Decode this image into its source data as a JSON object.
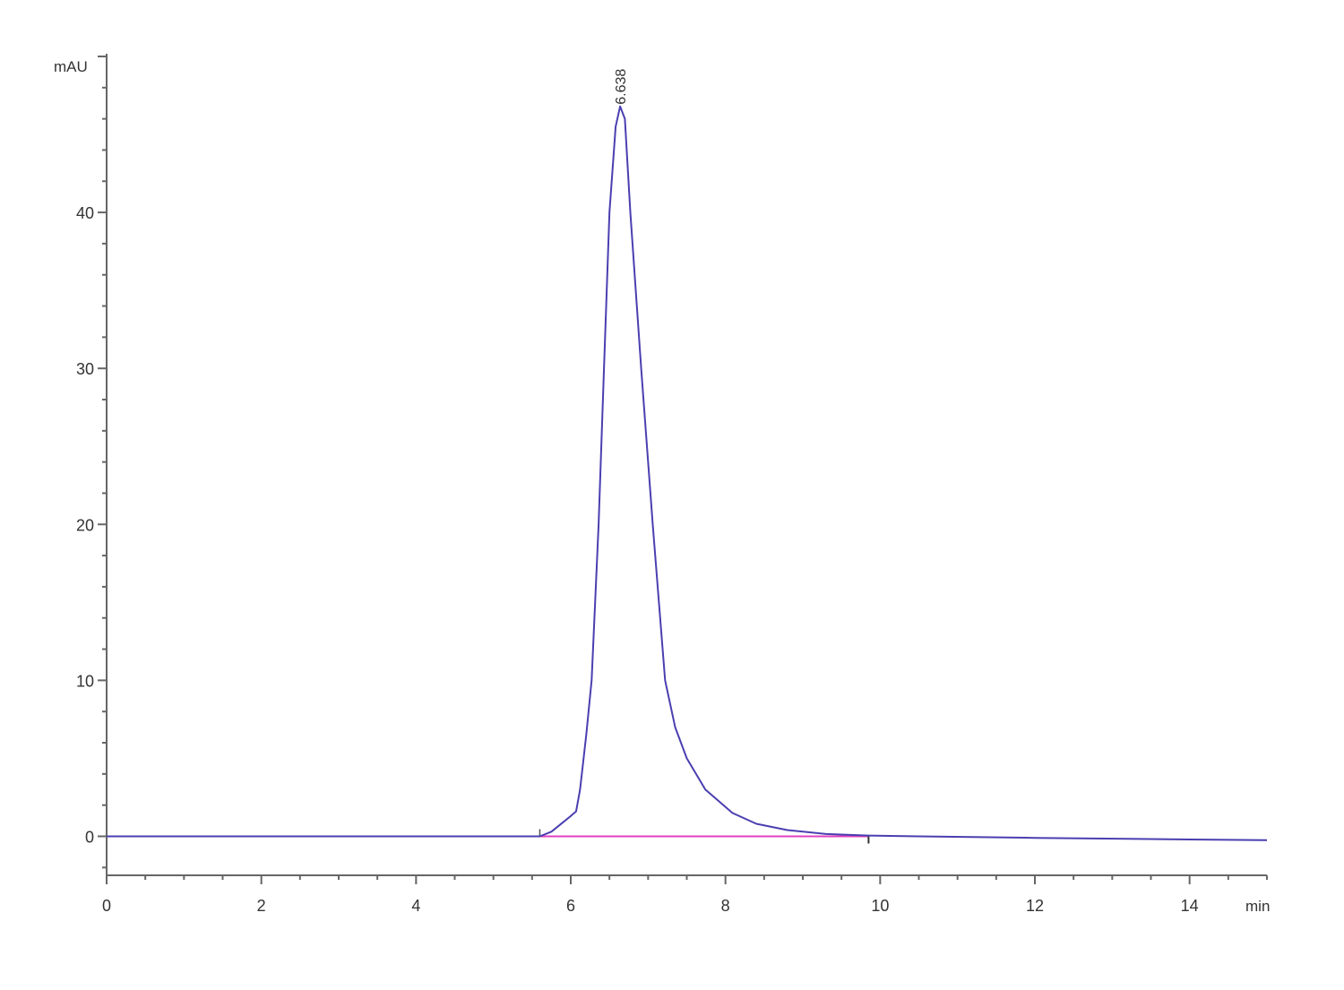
{
  "chart_data": {
    "type": "line",
    "title": "",
    "ylabel": "mAU",
    "xlabel": "min",
    "xlim": [
      0,
      15
    ],
    "ylim": [
      -2.5,
      50
    ],
    "grid": false,
    "x_ticks": [
      0,
      2,
      4,
      6,
      8,
      10,
      12,
      14
    ],
    "y_ticks": [
      0,
      10,
      20,
      30,
      40
    ],
    "colors": {
      "signal": "#4a3fb0",
      "baseline": "#e040c0",
      "axis": "#666666"
    },
    "peak_label": "6.638",
    "peak": {
      "x": 6.638,
      "y": 46.8
    },
    "integration_baseline": {
      "x": [
        5.6,
        9.85
      ],
      "y": [
        0,
        0
      ]
    },
    "series": [
      {
        "x": [
          0,
          2,
          4,
          5.6,
          5.75,
          5.9,
          6.0,
          6.07,
          6.12,
          6.2,
          6.27,
          6.36,
          6.43,
          6.5,
          6.58,
          6.638,
          6.7,
          6.77,
          6.91,
          7.06,
          7.22,
          7.35,
          7.5,
          7.74,
          8.09,
          8.4,
          8.8,
          9.3,
          9.85,
          10.5,
          12,
          14,
          15
        ],
        "y": [
          0,
          0,
          0,
          0,
          0.3,
          0.9,
          1.3,
          1.6,
          3,
          6.5,
          10,
          20,
          30,
          40,
          45.5,
          46.8,
          46,
          40,
          30,
          20,
          10,
          7,
          5,
          3,
          1.5,
          0.8,
          0.4,
          0.15,
          0.05,
          0,
          -0.1,
          -0.2,
          -0.25
        ]
      }
    ]
  }
}
